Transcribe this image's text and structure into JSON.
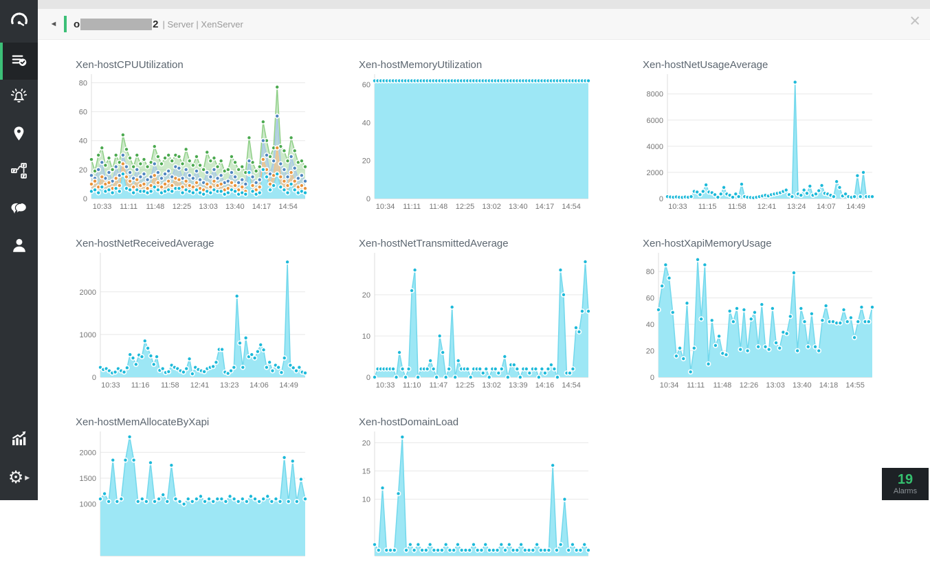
{
  "colors": {
    "accent_green": "#3cbf77",
    "sidebar_bg": "#2d3135",
    "header_bg": "#f7f7f7",
    "badge_bg": "#1d2125",
    "alarm_count_green": "#35c06f",
    "chart_title_text": "#5c6670",
    "cyan_marker": "#1cb9d9",
    "cyan_fill": "#9de7f5"
  },
  "sidebar": {
    "items": [
      {
        "id": "inventory",
        "icon": "list-check-icon",
        "selected": true
      },
      {
        "id": "alarms",
        "icon": "bell-alert-icon",
        "selected": false
      },
      {
        "id": "maps",
        "icon": "location-pin-icon",
        "selected": false
      },
      {
        "id": "topology",
        "icon": "network-topology-icon",
        "selected": false
      },
      {
        "id": "chat",
        "icon": "chat-bubbles-icon",
        "selected": false
      },
      {
        "id": "users",
        "icon": "user-icon",
        "selected": false
      },
      {
        "id": "reports",
        "icon": "chart-trend-icon",
        "selected": false
      },
      {
        "id": "settings",
        "icon": "gear-icon",
        "selected": false
      }
    ]
  },
  "header": {
    "back_icon": "◄",
    "title_prefix": "o",
    "title_suffix": "2",
    "breadcrumb": "| Server | XenServer",
    "close_icon": "×"
  },
  "alarms_badge": {
    "count": "19",
    "label": "Alarms"
  },
  "chart_data": [
    {
      "type": "area",
      "title": "Xen-hostCPUUtilization",
      "yticks": [
        0,
        20,
        40,
        60,
        80
      ],
      "ymax": 84,
      "xlabels": [
        "10:33",
        "11:11",
        "11:48",
        "12:25",
        "13:03",
        "13:40",
        "14:17",
        "14:54"
      ],
      "series": [
        {
          "marker": "#4ba94f",
          "line": "#8fcf87",
          "fill": "rgba(143,207,135,0.45)",
          "values": [
            27,
            19,
            30,
            35,
            23,
            28,
            20,
            30,
            25,
            44,
            34,
            28,
            22,
            30,
            24,
            27,
            22,
            25,
            36,
            29,
            24,
            28,
            30,
            26,
            30,
            29,
            24,
            34,
            26,
            23,
            29,
            23,
            20,
            32,
            26,
            28,
            22,
            26,
            19,
            20,
            29,
            25,
            20,
            22,
            18,
            42,
            25,
            19,
            22,
            53,
            40,
            29,
            35,
            77,
            36,
            33,
            26,
            42,
            33,
            25,
            26,
            22
          ]
        },
        {
          "marker": "#4f86c0",
          "line": "#a6c6e8",
          "fill": "rgba(166,198,232,0.55)",
          "values": [
            16,
            14,
            20,
            25,
            14,
            18,
            12,
            22,
            16,
            30,
            22,
            18,
            14,
            20,
            15,
            17,
            13,
            15,
            24,
            18,
            14,
            17,
            19,
            15,
            22,
            21,
            14,
            20,
            16,
            14,
            19,
            13,
            11,
            18,
            15,
            20,
            14,
            16,
            11,
            12,
            18,
            15,
            11,
            13,
            10,
            26,
            15,
            11,
            13,
            40,
            30,
            17,
            26,
            57,
            24,
            20,
            15,
            29,
            21,
            14,
            16,
            12
          ]
        },
        {
          "marker": "#e8933c",
          "line": "#f4c289",
          "fill": "rgba(244,194,137,0.6)",
          "values": [
            10,
            12,
            8,
            15,
            10,
            11,
            7,
            14,
            9,
            24,
            15,
            12,
            8,
            13,
            9,
            10,
            7,
            9,
            16,
            11,
            8,
            10,
            12,
            9,
            14,
            13,
            8,
            12,
            9,
            8,
            11,
            7,
            6,
            10,
            8,
            12,
            9,
            10,
            6,
            7,
            11,
            9,
            6,
            8,
            5,
            17,
            9,
            6,
            8,
            27,
            20,
            10,
            16,
            35,
            15,
            12,
            9,
            18,
            12,
            8,
            9,
            7
          ]
        },
        {
          "marker": "#17b8d8",
          "line": "#7edcef",
          "fill": "#9ee6f4",
          "values": [
            5,
            6,
            4,
            8,
            5,
            6,
            4,
            7,
            5,
            17,
            7,
            6,
            4,
            6,
            5,
            5,
            4,
            5,
            8,
            6,
            4,
            5,
            6,
            5,
            7,
            7,
            4,
            6,
            5,
            4,
            6,
            4,
            3,
            5,
            4,
            6,
            5,
            5,
            3,
            4,
            6,
            5,
            3,
            4,
            3,
            18,
            5,
            3,
            4,
            20,
            15,
            6,
            9,
            17,
            8,
            6,
            4,
            10,
            6,
            4,
            5,
            4
          ]
        }
      ]
    },
    {
      "type": "area",
      "title": "Xen-hostMemoryUtilization",
      "yticks": [
        0,
        20,
        40,
        60
      ],
      "ymax": 64,
      "xlabels": [
        "10:34",
        "11:11",
        "11:48",
        "12:25",
        "13:02",
        "13:40",
        "14:17",
        "14:54"
      ],
      "series": [
        {
          "marker": "#1cb9d9",
          "line": "#72d8ec",
          "fill": "#9de7f5",
          "values": [
            62,
            62,
            62,
            62,
            62,
            62,
            62,
            62,
            62,
            62,
            62,
            62,
            62,
            62,
            62,
            62,
            62,
            62,
            62,
            62,
            62,
            62,
            62,
            62,
            62,
            62,
            62,
            62,
            62,
            62,
            62,
            62,
            62,
            62,
            62,
            62,
            62,
            62,
            62,
            62,
            62,
            62,
            62,
            62,
            62,
            62,
            62,
            62,
            62,
            62,
            62,
            62,
            62,
            62,
            62,
            62,
            62,
            62,
            62,
            62,
            62,
            62,
            62,
            62,
            62,
            62,
            62,
            62,
            62,
            62
          ]
        }
      ]
    },
    {
      "type": "area",
      "title": "Xen-hostNetUsageAverage",
      "yticks": [
        0,
        2000,
        4000,
        6000,
        8000
      ],
      "ymax": 9300,
      "xlabels": [
        "10:33",
        "11:15",
        "11:58",
        "12:41",
        "13:24",
        "14:07",
        "14:49"
      ],
      "series": [
        {
          "marker": "#1cb9d9",
          "line": "#72d8ec",
          "fill": "#9de7f5",
          "values": [
            150,
            120,
            100,
            130,
            100,
            90,
            120,
            100,
            150,
            550,
            500,
            300,
            550,
            1050,
            500,
            450,
            300,
            100,
            350,
            850,
            350,
            250,
            100,
            350,
            150,
            1100,
            150,
            100,
            80,
            60,
            100,
            150,
            200,
            250,
            200,
            300,
            350,
            400,
            450,
            550,
            650,
            300,
            150,
            8900,
            350,
            250,
            650,
            400,
            950,
            250,
            350,
            600,
            1000,
            400,
            350,
            250,
            150,
            1300,
            850,
            200,
            350,
            150,
            100,
            150,
            1750,
            150,
            2000,
            150,
            150,
            150
          ]
        }
      ]
    },
    {
      "type": "area",
      "title": "Xen-hostNetReceivedAverage",
      "yticks": [
        0,
        1000,
        2000
      ],
      "ymax": 2850,
      "xlabels": [
        "10:33",
        "11:16",
        "11:58",
        "12:41",
        "13:23",
        "14:06",
        "14:49"
      ],
      "series": [
        {
          "marker": "#1cb9d9",
          "line": "#72d8ec",
          "fill": "#9de7f5",
          "values": [
            230,
            180,
            200,
            150,
            100,
            120,
            200,
            150,
            120,
            220,
            530,
            450,
            300,
            520,
            480,
            850,
            680,
            500,
            300,
            480,
            160,
            200,
            110,
            130,
            280,
            230,
            200,
            150,
            120,
            200,
            430,
            80,
            230,
            180,
            150,
            130,
            200,
            230,
            250,
            350,
            650,
            650,
            120,
            90,
            150,
            230,
            1900,
            800,
            230,
            920,
            480,
            530,
            450,
            600,
            760,
            640,
            230,
            350,
            150,
            280,
            230,
            110,
            450,
            2700,
            280,
            220,
            150,
            230,
            120,
            100
          ]
        }
      ]
    },
    {
      "type": "area",
      "title": "Xen-hostNetTransmittedAverage",
      "yticks": [
        0,
        10,
        20
      ],
      "ymax": 29.5,
      "xlabels": [
        "10:33",
        "11:10",
        "11:47",
        "12:25",
        "13:02",
        "13:39",
        "14:16",
        "14:54"
      ],
      "series": [
        {
          "marker": "#1cb9d9",
          "line": "#72d8ec",
          "fill": "#9de7f5",
          "values": [
            0,
            2,
            2,
            2,
            2,
            2,
            2,
            0,
            6,
            2,
            0,
            2,
            21,
            26,
            0,
            2,
            2,
            2,
            4,
            2,
            0,
            10,
            6,
            0,
            2,
            17,
            0,
            4,
            2,
            2,
            2,
            0,
            2,
            2,
            2,
            1,
            2,
            0,
            2,
            2,
            1,
            2,
            5,
            0,
            3,
            3,
            2,
            0,
            2,
            2,
            1,
            2,
            2,
            0,
            2,
            1,
            2,
            3,
            2,
            0,
            26,
            20,
            1,
            1,
            2,
            12,
            11,
            16,
            28,
            16
          ]
        }
      ]
    },
    {
      "type": "area",
      "title": "Xen-hostXapiMemoryUsage",
      "yticks": [
        0,
        20,
        40,
        60,
        80
      ],
      "ymax": 92,
      "xlabels": [
        "10:34",
        "11:11",
        "11:48",
        "12:26",
        "13:03",
        "13:40",
        "14:18",
        "14:55"
      ],
      "series": [
        {
          "marker": "#1cb9d9",
          "line": "#72d8ec",
          "fill": "#9de7f5",
          "values": [
            51,
            69,
            85,
            75,
            49,
            16,
            22,
            14,
            56,
            4,
            22,
            89,
            44,
            85,
            10,
            43,
            24,
            31,
            18,
            17,
            50,
            42,
            52,
            21,
            51,
            20,
            44,
            49,
            23,
            55,
            23,
            21,
            52,
            26,
            22,
            34,
            33,
            46,
            79,
            20,
            52,
            42,
            23,
            48,
            23,
            20,
            43,
            54,
            42,
            42,
            41,
            41,
            51,
            42,
            45,
            30,
            42,
            53,
            42,
            42,
            53
          ]
        }
      ]
    },
    {
      "type": "area",
      "title": "Xen-hostMemAllocateByXapi",
      "yticks": [
        1000,
        1500,
        2000
      ],
      "ymax": 2350,
      "xlabels": [],
      "series": [
        {
          "marker": "#1cb9d9",
          "line": "#72d8ec",
          "fill": "#9de7f5",
          "values": [
            1100,
            1200,
            1050,
            1850,
            1050,
            1100,
            1850,
            2300,
            1850,
            1050,
            1100,
            1050,
            1800,
            1050,
            1100,
            1180,
            1050,
            1750,
            1100,
            1050,
            1000,
            1100,
            1050,
            1100,
            1150,
            1050,
            1100,
            1050,
            1100,
            1100,
            1050,
            1150,
            1100,
            1050,
            1100,
            1050,
            1150,
            1100,
            1050,
            1100,
            1150,
            1050,
            1100,
            1050,
            1900,
            1050,
            1830,
            1050,
            1480,
            1100
          ]
        }
      ]
    },
    {
      "type": "area",
      "title": "Xen-hostDomainLoad",
      "yticks": [
        10,
        15,
        20
      ],
      "ymax": 21.5,
      "xlabels": [],
      "series": [
        {
          "marker": "#1cb9d9",
          "line": "#72d8ec",
          "fill": "#9de7f5",
          "values": [
            2,
            1,
            12,
            1,
            1,
            1,
            11,
            21,
            1,
            2,
            1,
            2,
            1,
            1,
            2,
            1,
            1,
            1,
            2,
            1,
            1,
            2,
            1,
            1,
            1,
            2,
            1,
            1,
            2,
            1,
            1,
            1,
            2,
            1,
            2,
            1,
            1,
            2,
            1,
            1,
            1,
            2,
            1,
            1,
            1,
            16,
            1,
            2,
            10,
            1,
            2,
            1,
            1,
            2,
            1
          ]
        }
      ]
    }
  ]
}
